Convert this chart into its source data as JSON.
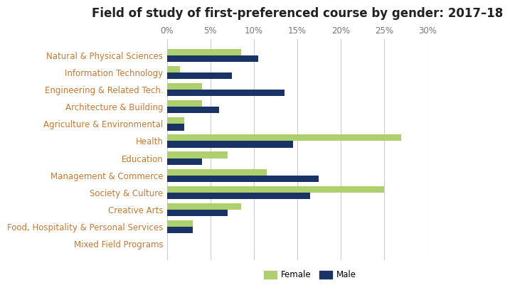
{
  "title": "Field of study of first-preferenced course by gender: 2017–18",
  "categories": [
    "Natural & Physical Sciences",
    "Information Technology",
    "Engineering & Related Tech.",
    "Architecture & Building",
    "Agriculture & Environmental",
    "Health",
    "Education",
    "Management & Commerce",
    "Society & Culture",
    "Creative Arts",
    "Food, Hospitality & Personal Services",
    "Mixed Field Programs"
  ],
  "female": [
    8.5,
    1.5,
    4.0,
    4.0,
    2.0,
    27.0,
    7.0,
    11.5,
    25.0,
    8.5,
    3.0,
    0.0
  ],
  "male": [
    10.5,
    7.5,
    13.5,
    6.0,
    2.0,
    14.5,
    4.0,
    17.5,
    16.5,
    7.0,
    3.0,
    0.0
  ],
  "female_color": "#aecf6e",
  "male_color": "#1a3366",
  "xlim": [
    0,
    30
  ],
  "xticks": [
    0,
    5,
    10,
    15,
    20,
    25,
    30
  ],
  "xtick_labels": [
    "0%",
    "5%",
    "10%",
    "15%",
    "20%",
    "25%",
    "30%"
  ],
  "title_fontsize": 12,
  "label_fontsize": 8.5,
  "tick_fontsize": 8.5,
  "bar_height": 0.38,
  "legend_labels": [
    "Female",
    "Male"
  ],
  "background_color": "#ffffff",
  "grid_color": "#cccccc",
  "label_color": "#c87832",
  "ylabel_color": "#888888"
}
